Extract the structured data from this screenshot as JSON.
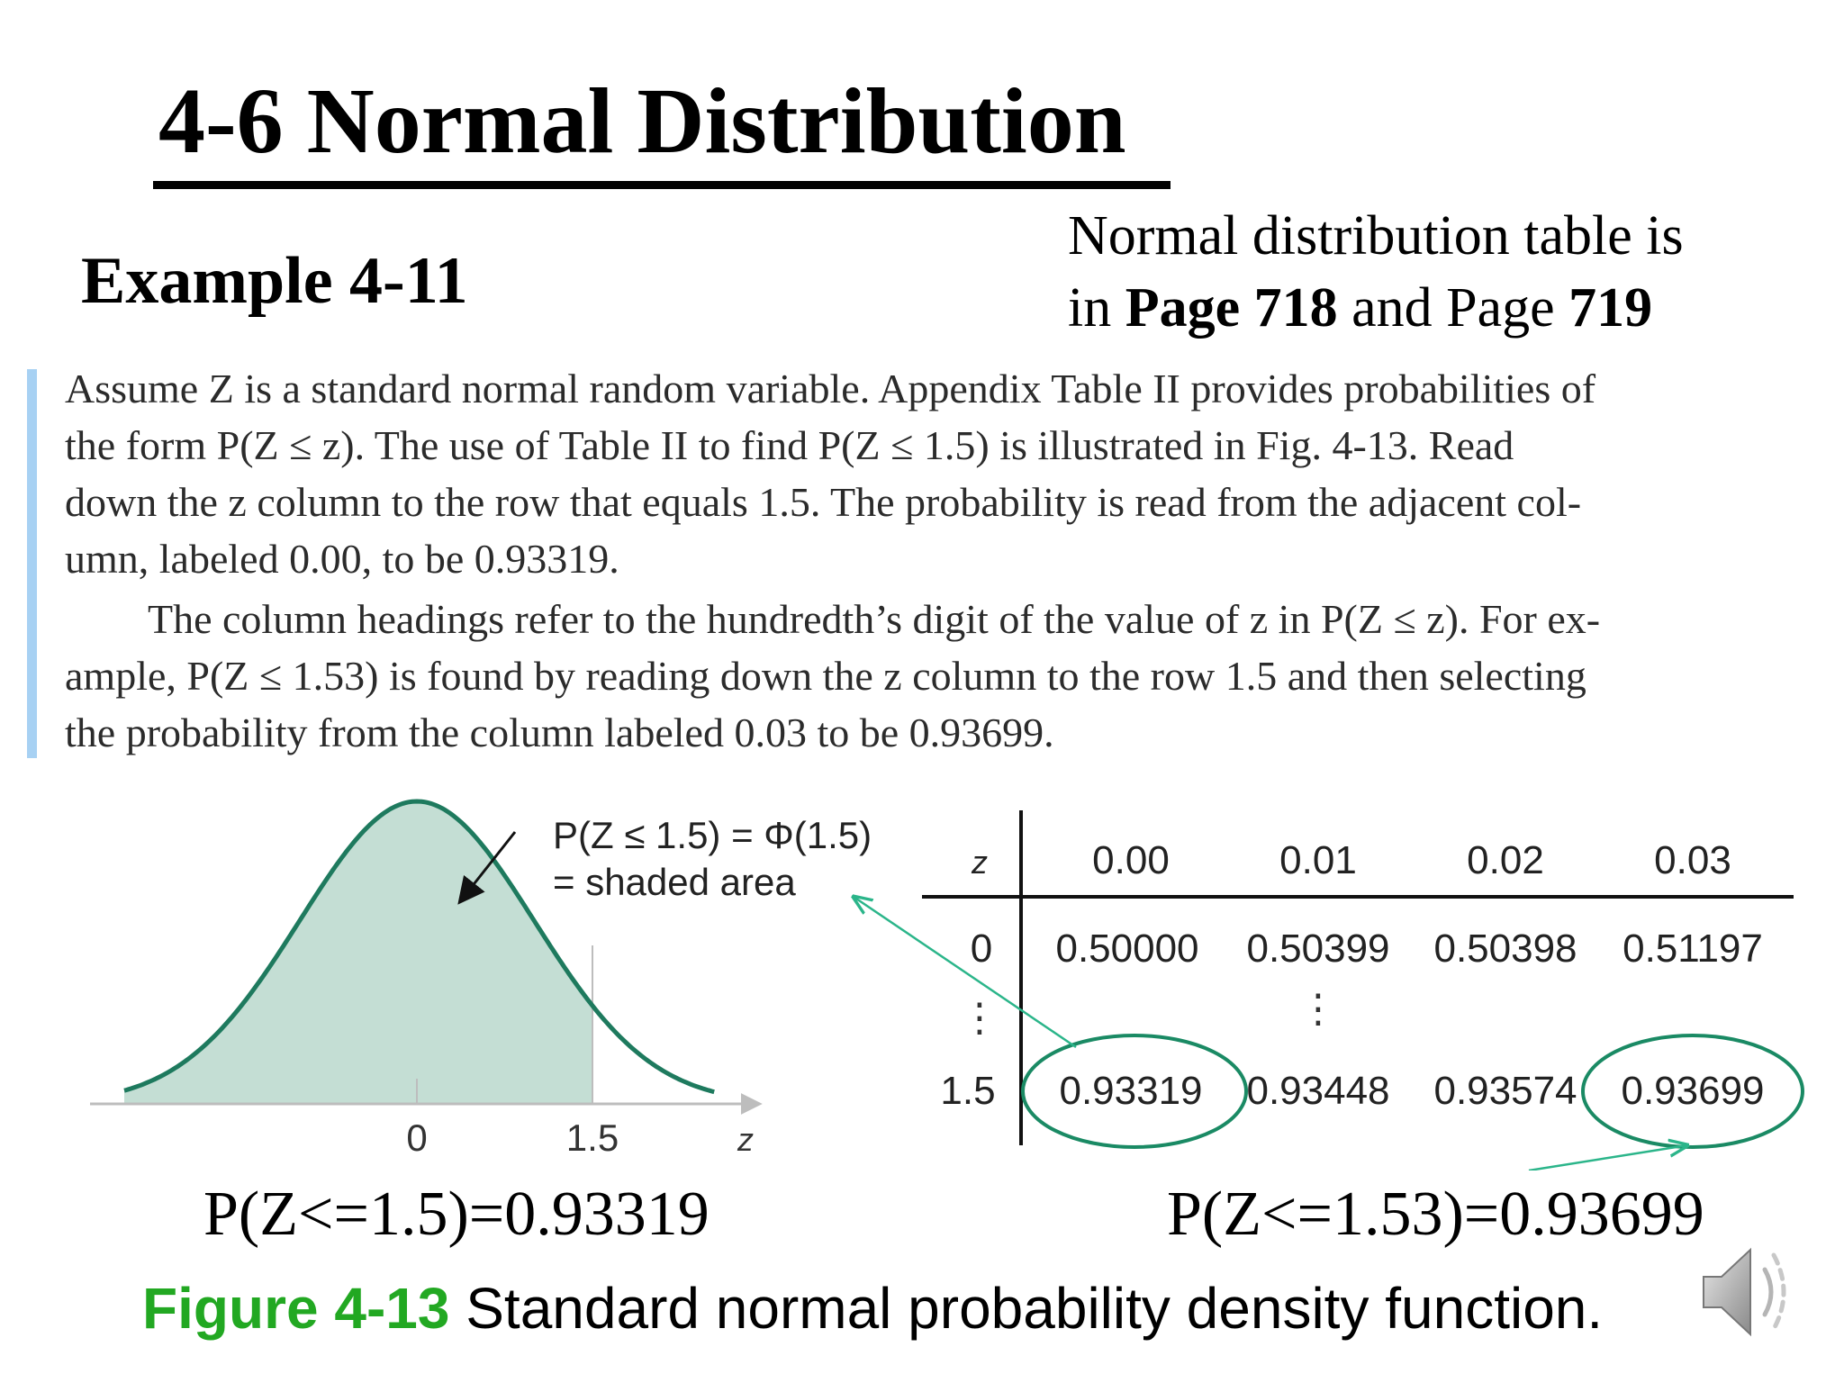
{
  "title": "4-6 Normal Distribution",
  "example_heading": "Example 4-11",
  "table_note": {
    "line1": "Normal distribution table is",
    "line2_prefix": "in ",
    "line2_bold1": "Page 718",
    "line2_middle": " and Page ",
    "line2_bold2": "719"
  },
  "example_text": {
    "paragraph1": "Assume Z is a standard normal random variable. Appendix Table II provides probabilities of\nthe form P(Z ≤ z). The use of Table II to find P(Z ≤ 1.5) is illustrated in Fig. 4-13. Read\ndown the z column to the row that equals 1.5. The probability is read from the adjacent col-\numn, labeled 0.00, to be 0.93319.",
    "paragraph2": "The column headings refer to the hundredth’s digit of the value of z in P(Z ≤ z). For ex-\nample, P(Z ≤ 1.53) is found by reading down the z column to the row 1.5 and then selecting\nthe probability from the column labeled 0.03 to be 0.93699."
  },
  "figure": {
    "curve_annotation_line1": "P(Z ≤ 1.5) = Φ(1.5)",
    "curve_annotation_line2": "= shaded area",
    "axis_labels": [
      "0",
      "1.5",
      "z"
    ],
    "table": {
      "header_label": "z",
      "columns": [
        "0.00",
        "0.01",
        "0.02",
        "0.03"
      ],
      "rows": [
        {
          "z": "0",
          "values": [
            "0.50000",
            "0.50399",
            "0.50398",
            "0.51197"
          ]
        },
        {
          "z": "1.5",
          "values": [
            "0.93319",
            "0.93448",
            "0.93574",
            "0.93699"
          ]
        }
      ],
      "ellipsis": "⋮"
    }
  },
  "result_left": "P(Z<=1.5)=0.93319",
  "result_right": "P(Z<=1.53)=0.93699",
  "caption": {
    "label": "Figure 4-13",
    "text": " Standard normal probability density function."
  },
  "colors": {
    "curve": "#1e7a5e",
    "shade": "#c4ded4",
    "highlight_ellipse": "#1a8a64",
    "arrow": "#2bb58a",
    "caption_label": "#22a822",
    "side_bar": "#a7d1f3"
  },
  "icons": {
    "speaker": "speaker-audio-icon"
  }
}
